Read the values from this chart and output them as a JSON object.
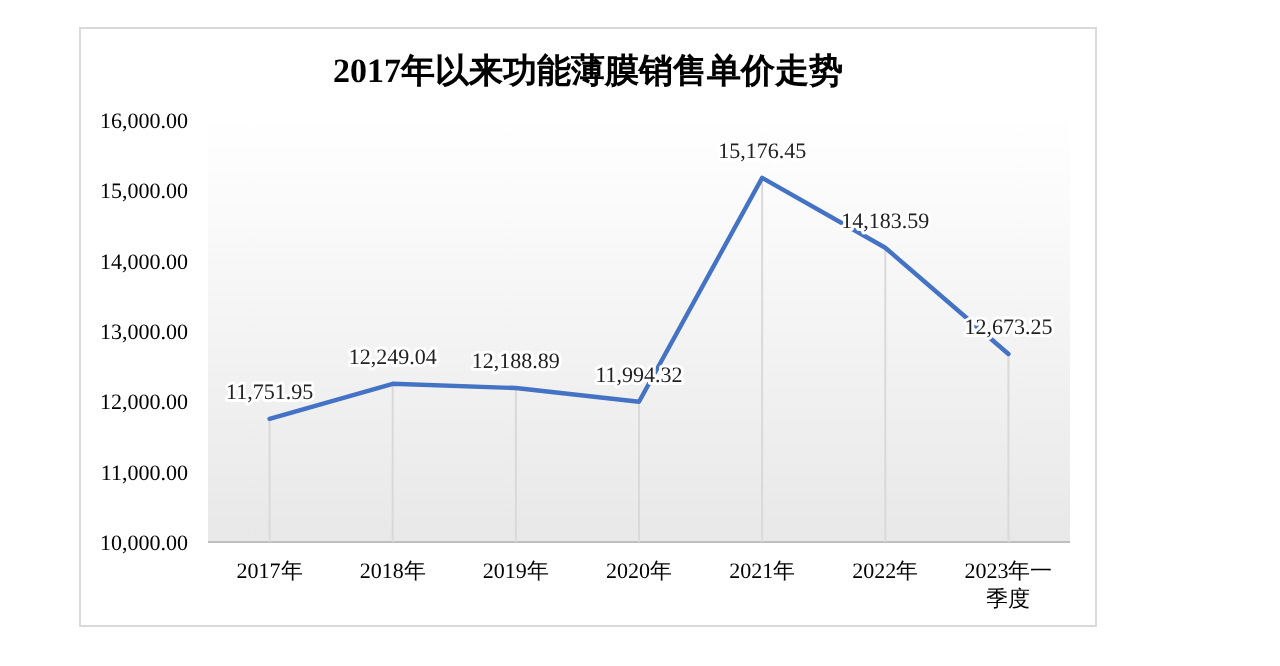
{
  "chart_data": {
    "type": "line",
    "title": "2017年以来功能薄膜销售单价走势",
    "categories": [
      "2017年",
      "2018年",
      "2019年",
      "2020年",
      "2021年",
      "2022年",
      "2023年一季度"
    ],
    "series": [
      {
        "color": "#4472c4",
        "values": [
          11751.95,
          12249.04,
          12188.89,
          11994.32,
          15176.45,
          14183.59,
          12673.25
        ],
        "value_labels": [
          "11,751.95",
          "12,249.04",
          "12,188.89",
          "11,994.32",
          "15,176.45",
          "14,183.59",
          "12,673.25"
        ]
      }
    ],
    "ylim": [
      10000,
      16000
    ],
    "yticks": [
      {
        "value": 10000,
        "label": "10,000.00"
      },
      {
        "value": 11000,
        "label": "11,000.00"
      },
      {
        "value": 12000,
        "label": "12,000.00"
      },
      {
        "value": 13000,
        "label": "13,000.00"
      },
      {
        "value": 14000,
        "label": "14,000.00"
      },
      {
        "value": 15000,
        "label": "15,000.00"
      },
      {
        "value": 16000,
        "label": "16,000.00"
      }
    ],
    "grid": "x",
    "marker": "none",
    "line_style": "solid"
  }
}
